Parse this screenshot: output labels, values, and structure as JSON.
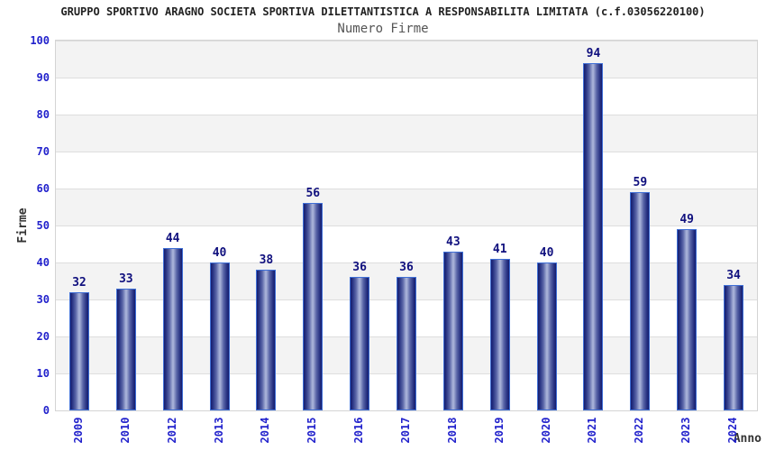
{
  "chart_data": {
    "type": "bar",
    "title": "GRUPPO SPORTIVO ARAGNO SOCIETA SPORTIVA DILETTANTISTICA A RESPONSABILITA LIMITATA (c.f.03056220100)",
    "subtitle": "Numero Firme",
    "xlabel": "Anno",
    "ylabel": "Firme",
    "categories": [
      "2009",
      "2010",
      "2012",
      "2013",
      "2014",
      "2015",
      "2016",
      "2017",
      "2018",
      "2019",
      "2020",
      "2021",
      "2022",
      "2023",
      "2024"
    ],
    "values": [
      32,
      33,
      44,
      40,
      38,
      56,
      36,
      36,
      43,
      41,
      40,
      94,
      59,
      49,
      34
    ],
    "ylim": [
      0,
      100
    ],
    "ytick_step": 10,
    "legend": "none",
    "grid": "horizontal gray bands every 10 units with 1px lines",
    "bar_value_labels": true,
    "x_tick_rotation_deg": 90,
    "colors": {
      "bar_dark": "#141C6E",
      "bar_light": "#AEB8DC",
      "bar_border": "#3F6FD6",
      "value_label": "#10107E",
      "tick_label": "#2222CC",
      "band_fill": "#F3F3F3",
      "grid_line": "#DEDEDE",
      "plot_border": "#D4D4D4",
      "title": "#222222",
      "subtitle": "#555555",
      "axis_label": "#333333",
      "background": "#FFFFFF"
    }
  }
}
